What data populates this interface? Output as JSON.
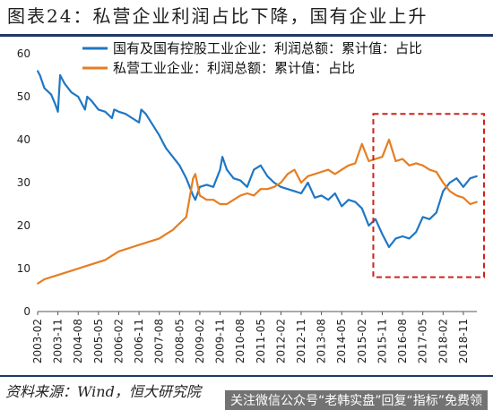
{
  "page": {
    "title": "图表24：私营企业利润占比下降，国有企业上升",
    "source": "资料来源：Wind，恒大研究院",
    "watermark": "关注微信公众号“老韩实盘”回复“指标”免费领"
  },
  "chart_data": {
    "type": "line",
    "title": "图表24：私营企业利润占比下降，国有企业上升",
    "xlabel": "",
    "ylabel": "",
    "ylim": [
      0,
      60
    ],
    "yticks": [
      0,
      10,
      20,
      30,
      40,
      50,
      60
    ],
    "xticks": [
      "2003-02",
      "2003-11",
      "2004-08",
      "2005-05",
      "2006-02",
      "2006-11",
      "2007-08",
      "2008-05",
      "2009-02",
      "2009-11",
      "2010-08",
      "2011-05",
      "2012-02",
      "2012-11",
      "2013-08",
      "2014-05",
      "2015-02",
      "2015-11",
      "2016-08",
      "2017-05",
      "2018-02",
      "2018-11"
    ],
    "grid": false,
    "legend_position": "top-center",
    "highlight": {
      "style": "red dashed rectangle",
      "x_from": "2015-11",
      "x_to": "2019-05",
      "y_from": 8,
      "y_to": 46
    },
    "series": [
      {
        "name": "国有及国有控股工业企业：利润总额：累计值：占比",
        "color": "#1f77c4",
        "points": [
          [
            "2003-02",
            56
          ],
          [
            "2003-03",
            55
          ],
          [
            "2003-05",
            52
          ],
          [
            "2003-08",
            50.5
          ],
          [
            "2003-10",
            48
          ],
          [
            "2003-11",
            46.5
          ],
          [
            "2003-12",
            55
          ],
          [
            "2004-02",
            53
          ],
          [
            "2004-05",
            51
          ],
          [
            "2004-08",
            50
          ],
          [
            "2004-11",
            47
          ],
          [
            "2004-12",
            50
          ],
          [
            "2005-02",
            49
          ],
          [
            "2005-05",
            47
          ],
          [
            "2005-08",
            46.5
          ],
          [
            "2005-11",
            45
          ],
          [
            "2005-12",
            47
          ],
          [
            "2006-02",
            46.5
          ],
          [
            "2006-05",
            46
          ],
          [
            "2006-08",
            45
          ],
          [
            "2006-11",
            44
          ],
          [
            "2006-12",
            47
          ],
          [
            "2007-02",
            46
          ],
          [
            "2007-05",
            43.5
          ],
          [
            "2007-08",
            41
          ],
          [
            "2007-11",
            38
          ],
          [
            "2008-02",
            36
          ],
          [
            "2008-05",
            34
          ],
          [
            "2008-08",
            31
          ],
          [
            "2008-11",
            27
          ],
          [
            "2008-12",
            26
          ],
          [
            "2009-02",
            29
          ],
          [
            "2009-05",
            29.5
          ],
          [
            "2009-08",
            29
          ],
          [
            "2009-11",
            33
          ],
          [
            "2009-12",
            36
          ],
          [
            "2010-02",
            33
          ],
          [
            "2010-05",
            31
          ],
          [
            "2010-08",
            30.5
          ],
          [
            "2010-11",
            29
          ],
          [
            "2011-02",
            33
          ],
          [
            "2011-05",
            34
          ],
          [
            "2011-08",
            31.5
          ],
          [
            "2011-11",
            30
          ],
          [
            "2012-02",
            29
          ],
          [
            "2012-05",
            28.5
          ],
          [
            "2012-08",
            28
          ],
          [
            "2012-11",
            27.5
          ],
          [
            "2013-02",
            30
          ],
          [
            "2013-05",
            26.5
          ],
          [
            "2013-08",
            27
          ],
          [
            "2013-11",
            26
          ],
          [
            "2014-02",
            27.5
          ],
          [
            "2014-05",
            24.5
          ],
          [
            "2014-08",
            26
          ],
          [
            "2014-11",
            25.5
          ],
          [
            "2015-02",
            24
          ],
          [
            "2015-05",
            20
          ],
          [
            "2015-08",
            21.5
          ],
          [
            "2015-11",
            18
          ],
          [
            "2016-02",
            15
          ],
          [
            "2016-05",
            17
          ],
          [
            "2016-08",
            17.5
          ],
          [
            "2016-11",
            17
          ],
          [
            "2017-02",
            18.5
          ],
          [
            "2017-05",
            22
          ],
          [
            "2017-08",
            21.5
          ],
          [
            "2017-11",
            23
          ],
          [
            "2018-02",
            28
          ],
          [
            "2018-05",
            30
          ],
          [
            "2018-08",
            31
          ],
          [
            "2018-11",
            29
          ],
          [
            "2019-02",
            31
          ],
          [
            "2019-05",
            31.5
          ]
        ]
      },
      {
        "name": "私营工业企业：利润总额：累计值：占比",
        "color": "#e67e22",
        "points": [
          [
            "2003-02",
            6.5
          ],
          [
            "2003-05",
            7.5
          ],
          [
            "2003-08",
            8
          ],
          [
            "2003-11",
            8.5
          ],
          [
            "2004-02",
            9
          ],
          [
            "2004-05",
            9.5
          ],
          [
            "2004-08",
            10
          ],
          [
            "2004-11",
            10.5
          ],
          [
            "2005-02",
            11
          ],
          [
            "2005-05",
            11.5
          ],
          [
            "2005-08",
            12
          ],
          [
            "2005-11",
            13
          ],
          [
            "2006-02",
            14
          ],
          [
            "2006-05",
            14.5
          ],
          [
            "2006-08",
            15
          ],
          [
            "2006-11",
            15.5
          ],
          [
            "2007-02",
            16
          ],
          [
            "2007-05",
            16.5
          ],
          [
            "2007-08",
            17
          ],
          [
            "2007-11",
            18
          ],
          [
            "2008-02",
            19
          ],
          [
            "2008-05",
            20.5
          ],
          [
            "2008-08",
            22
          ],
          [
            "2008-11",
            31
          ],
          [
            "2008-12",
            32
          ],
          [
            "2009-02",
            27
          ],
          [
            "2009-05",
            26
          ],
          [
            "2009-08",
            26
          ],
          [
            "2009-11",
            25
          ],
          [
            "2010-02",
            25
          ],
          [
            "2010-05",
            26
          ],
          [
            "2010-08",
            27
          ],
          [
            "2010-11",
            27.5
          ],
          [
            "2011-02",
            27
          ],
          [
            "2011-05",
            28.5
          ],
          [
            "2011-08",
            28.5
          ],
          [
            "2011-11",
            29
          ],
          [
            "2012-02",
            30
          ],
          [
            "2012-05",
            32
          ],
          [
            "2012-08",
            33
          ],
          [
            "2012-11",
            30
          ],
          [
            "2013-02",
            31.5
          ],
          [
            "2013-05",
            32
          ],
          [
            "2013-08",
            32.5
          ],
          [
            "2013-11",
            33
          ],
          [
            "2014-02",
            32
          ],
          [
            "2014-05",
            33
          ],
          [
            "2014-08",
            34
          ],
          [
            "2014-11",
            34.5
          ],
          [
            "2015-02",
            39
          ],
          [
            "2015-05",
            35
          ],
          [
            "2015-08",
            35.5
          ],
          [
            "2015-11",
            36
          ],
          [
            "2016-02",
            40
          ],
          [
            "2016-05",
            35
          ],
          [
            "2016-08",
            35.5
          ],
          [
            "2016-11",
            34
          ],
          [
            "2017-02",
            34.5
          ],
          [
            "2017-05",
            34
          ],
          [
            "2017-08",
            33
          ],
          [
            "2017-11",
            32.5
          ],
          [
            "2018-02",
            30
          ],
          [
            "2018-05",
            28
          ],
          [
            "2018-08",
            27
          ],
          [
            "2018-11",
            26.5
          ],
          [
            "2019-02",
            25
          ],
          [
            "2019-05",
            25.5
          ]
        ]
      }
    ]
  }
}
